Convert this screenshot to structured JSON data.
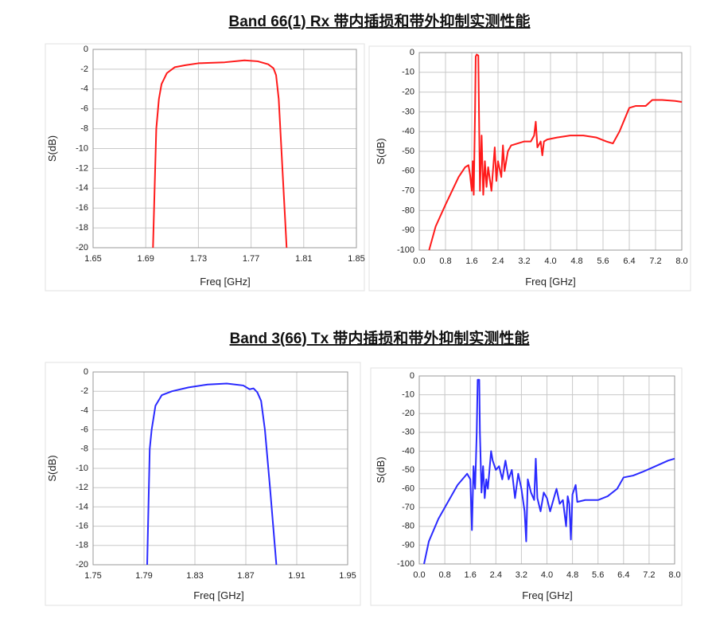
{
  "headings": [
    "Band 66(1) Rx 带内插损和带外抑制实测性能",
    "Band 3(66) Tx 带内插损和带外抑制实测性能"
  ],
  "chart_data": [
    {
      "type": "line",
      "xlabel": "Freq [GHz]",
      "ylabel": "S(dB)",
      "color": "#ff1a1a",
      "grid": true,
      "xlim": [
        1.65,
        1.85
      ],
      "xticks": [
        1.65,
        1.69,
        1.73,
        1.77,
        1.81,
        1.85
      ],
      "ylim": [
        -20,
        0
      ],
      "yticks": [
        0,
        -2,
        -4,
        -6,
        -8,
        -10,
        -12,
        -14,
        -16,
        -18,
        -20
      ],
      "x": [
        1.6955,
        1.698,
        1.7,
        1.702,
        1.706,
        1.712,
        1.72,
        1.73,
        1.75,
        1.765,
        1.775,
        1.783,
        1.787,
        1.789,
        1.791,
        1.793,
        1.795,
        1.797
      ],
      "values": [
        -20,
        -8,
        -5,
        -3.5,
        -2.4,
        -1.8,
        -1.6,
        -1.4,
        -1.3,
        -1.1,
        -1.2,
        -1.5,
        -1.9,
        -2.6,
        -5,
        -10,
        -15,
        -20
      ]
    },
    {
      "type": "line",
      "xlabel": "Freq [GHz]",
      "ylabel": "S(dB)",
      "color": "#ff1a1a",
      "grid": true,
      "xlim": [
        0,
        8
      ],
      "xticks": [
        {
          "value": 0,
          "label": "0.0"
        },
        0.8,
        1.6,
        2.4,
        3.2,
        {
          "value": 4,
          "label": "4.0"
        },
        4.8,
        5.6,
        6.4,
        7.2,
        {
          "value": 8,
          "label": "8.0"
        }
      ],
      "ylim": [
        -100,
        0
      ],
      "yticks": [
        0,
        -10,
        -20,
        -30,
        -40,
        -50,
        -60,
        -70,
        -80,
        -90,
        -100
      ],
      "x": [
        0.3,
        0.5,
        0.8,
        1.0,
        1.2,
        1.4,
        1.5,
        1.55,
        1.6,
        1.63,
        1.66,
        1.7,
        1.72,
        1.75,
        1.8,
        1.82,
        1.85,
        1.9,
        1.95,
        2.0,
        2.05,
        2.1,
        2.2,
        2.3,
        2.35,
        2.4,
        2.5,
        2.55,
        2.6,
        2.7,
        2.8,
        3.0,
        3.2,
        3.4,
        3.5,
        3.55,
        3.6,
        3.7,
        3.75,
        3.8,
        3.9,
        4.2,
        4.6,
        4.8,
        5.0,
        5.4,
        5.7,
        5.9,
        6.1,
        6.4,
        6.6,
        6.9,
        7.1,
        7.4,
        7.8,
        8.0
      ],
      "values": [
        -100,
        -88,
        -77,
        -70,
        -63,
        -58,
        -57,
        -62,
        -70,
        -55,
        -72,
        -30,
        -2,
        -1,
        -1.5,
        -30,
        -70,
        -42,
        -72,
        -55,
        -68,
        -58,
        -70,
        -48,
        -65,
        -55,
        -63,
        -47,
        -60,
        -50,
        -47,
        -46,
        -45,
        -45,
        -42,
        -35,
        -48,
        -45,
        -52,
        -45,
        -44,
        -43,
        -42,
        -42,
        -42,
        -43,
        -45,
        -46,
        -40,
        -28,
        -27,
        -27,
        -24,
        -24,
        -24.5,
        -25
      ]
    },
    {
      "type": "line",
      "xlabel": "Freq [GHz]",
      "ylabel": "S(dB)",
      "color": "#2a2aff",
      "grid": true,
      "xlim": [
        1.75,
        1.95
      ],
      "xticks": [
        1.75,
        1.79,
        1.83,
        1.87,
        1.91,
        1.95
      ],
      "ylim": [
        -20,
        0
      ],
      "yticks": [
        0,
        -2,
        -4,
        -6,
        -8,
        -10,
        -12,
        -14,
        -16,
        -18,
        -20
      ],
      "x": [
        1.7925,
        1.7945,
        1.796,
        1.799,
        1.804,
        1.812,
        1.825,
        1.84,
        1.855,
        1.868,
        1.873,
        1.876,
        1.879,
        1.882,
        1.885,
        1.889,
        1.894
      ],
      "values": [
        -20,
        -8,
        -6,
        -3.5,
        -2.4,
        -2,
        -1.6,
        -1.3,
        -1.2,
        -1.4,
        -1.8,
        -1.7,
        -2.1,
        -3,
        -6,
        -12,
        -20
      ]
    },
    {
      "type": "line",
      "xlabel": "Freq [GHz]",
      "ylabel": "S(dB)",
      "color": "#2a2aff",
      "grid": true,
      "xlim": [
        0,
        8
      ],
      "xticks": [
        {
          "value": 0,
          "label": "0.0"
        },
        0.8,
        1.6,
        2.4,
        3.2,
        {
          "value": 4,
          "label": "4.0"
        },
        4.8,
        5.6,
        6.4,
        7.2,
        {
          "value": 8,
          "label": "8.0"
        }
      ],
      "ylim": [
        -100,
        0
      ],
      "yticks": [
        0,
        -10,
        -20,
        -30,
        -40,
        -50,
        -60,
        -70,
        -80,
        -90,
        -100
      ],
      "x": [
        0.15,
        0.3,
        0.6,
        0.9,
        1.2,
        1.5,
        1.6,
        1.65,
        1.7,
        1.75,
        1.8,
        1.83,
        1.88,
        1.9,
        1.95,
        2.0,
        2.05,
        2.1,
        2.15,
        2.25,
        2.3,
        2.4,
        2.5,
        2.6,
        2.7,
        2.8,
        2.9,
        3.0,
        3.1,
        3.2,
        3.3,
        3.35,
        3.4,
        3.5,
        3.6,
        3.65,
        3.7,
        3.8,
        3.9,
        4.0,
        4.1,
        4.2,
        4.3,
        4.4,
        4.5,
        4.6,
        4.65,
        4.7,
        4.75,
        4.8,
        4.9,
        4.95,
        5.2,
        5.6,
        5.9,
        6.2,
        6.4,
        6.7,
        7.0,
        7.4,
        7.8,
        8.0
      ],
      "values": [
        -100,
        -88,
        -76,
        -67,
        -58,
        -52,
        -55,
        -82,
        -48,
        -60,
        -30,
        -2,
        -2,
        -30,
        -62,
        -48,
        -65,
        -55,
        -60,
        -40,
        -45,
        -50,
        -48,
        -55,
        -45,
        -55,
        -50,
        -65,
        -52,
        -60,
        -72,
        -88,
        -55,
        -62,
        -66,
        -44,
        -65,
        -72,
        -62,
        -65,
        -72,
        -66,
        -60,
        -68,
        -66,
        -80,
        -64,
        -68,
        -87,
        -63,
        -58,
        -67,
        -66,
        -66,
        -64,
        -60,
        -54,
        -53,
        -51,
        -48,
        -45,
        -44
      ]
    }
  ]
}
